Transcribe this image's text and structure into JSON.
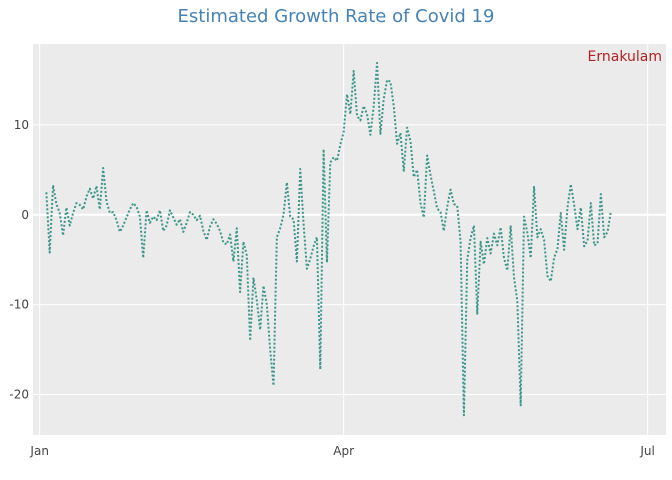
{
  "chart_data": {
    "type": "line",
    "title": "Estimated Growth Rate of Covid 19",
    "annotation": "Ernakulam",
    "annotation_position": "top-right",
    "xlabel": "",
    "ylabel": "",
    "x_domain_days": [
      -2,
      187.5
    ],
    "ylim": [
      -24.5,
      19
    ],
    "grid": true,
    "x_ticks": [
      {
        "label": "Jan",
        "day": 0
      },
      {
        "label": "Apr",
        "day": 91
      },
      {
        "label": "Jul",
        "day": 182
      }
    ],
    "y_ticks": [
      {
        "label": "10",
        "value": 10
      },
      {
        "label": "0",
        "value": 0
      },
      {
        "label": "-10",
        "value": -10
      },
      {
        "label": "-20",
        "value": -20
      }
    ],
    "colors": {
      "line": "#3a9688",
      "plot_bg": "#ebebeb",
      "grid": "#ffffff",
      "title": "#4682b4",
      "annotation": "#b22222"
    },
    "series": [
      {
        "name": "Ernakulam",
        "points": [
          [
            2,
            2.5
          ],
          [
            3,
            -4.2
          ],
          [
            4,
            3.3
          ],
          [
            5,
            1.2
          ],
          [
            6,
            0.2
          ],
          [
            7,
            -2.3
          ],
          [
            8,
            0.8
          ],
          [
            9,
            -1.2
          ],
          [
            10,
            0.2
          ],
          [
            11,
            1.3
          ],
          [
            12,
            1.1
          ],
          [
            13,
            0.6
          ],
          [
            14,
            2.0
          ],
          [
            15,
            2.9
          ],
          [
            16,
            1.8
          ],
          [
            17,
            3.2
          ],
          [
            18,
            0.6
          ],
          [
            19,
            5.2
          ],
          [
            20,
            1.5
          ],
          [
            21,
            0.2
          ],
          [
            22,
            0.3
          ],
          [
            23,
            -0.6
          ],
          [
            24,
            -1.9
          ],
          [
            25,
            -1.2
          ],
          [
            26,
            -0.3
          ],
          [
            27,
            0.6
          ],
          [
            28,
            1.3
          ],
          [
            29,
            0.9
          ],
          [
            30,
            -0.2
          ],
          [
            31,
            -4.8
          ],
          [
            32,
            0.5
          ],
          [
            33,
            -0.9
          ],
          [
            34,
            -0.2
          ],
          [
            35,
            -0.6
          ],
          [
            36,
            0.5
          ],
          [
            37,
            -1.8
          ],
          [
            38,
            -1.2
          ],
          [
            39,
            0.5
          ],
          [
            40,
            -0.3
          ],
          [
            41,
            -1.1
          ],
          [
            42,
            -0.5
          ],
          [
            43,
            -1.9
          ],
          [
            44,
            -0.9
          ],
          [
            45,
            0.3
          ],
          [
            46,
            0.0
          ],
          [
            47,
            -0.6
          ],
          [
            48,
            -0.1
          ],
          [
            49,
            -1.8
          ],
          [
            50,
            -2.8
          ],
          [
            51,
            -1.3
          ],
          [
            52,
            -0.5
          ],
          [
            53,
            -1.0
          ],
          [
            54,
            -1.8
          ],
          [
            55,
            -3.1
          ],
          [
            56,
            -3.3
          ],
          [
            57,
            -2.2
          ],
          [
            58,
            -5.2
          ],
          [
            59,
            -1.5
          ],
          [
            60,
            -8.6
          ],
          [
            61,
            -3.0
          ],
          [
            62,
            -4.5
          ],
          [
            63,
            -14.0
          ],
          [
            64,
            -7.0
          ],
          [
            65,
            -9.5
          ],
          [
            66,
            -12.8
          ],
          [
            67,
            -7.9
          ],
          [
            68,
            -10.0
          ],
          [
            69,
            -15.0
          ],
          [
            70,
            -19.0
          ],
          [
            71,
            -2.5
          ],
          [
            72,
            -1.5
          ],
          [
            73,
            0.0
          ],
          [
            74,
            3.6
          ],
          [
            75,
            -0.2
          ],
          [
            76,
            -0.5
          ],
          [
            77,
            -5.2
          ],
          [
            78,
            5.1
          ],
          [
            79,
            -1.0
          ],
          [
            80,
            -6.0
          ],
          [
            81,
            -4.9
          ],
          [
            82,
            -3.5
          ],
          [
            83,
            -2.5
          ],
          [
            84,
            -17.2
          ],
          [
            85,
            7.3
          ],
          [
            86,
            -5.3
          ],
          [
            87,
            5.8
          ],
          [
            88,
            6.4
          ],
          [
            89,
            6.0
          ],
          [
            90,
            7.8
          ],
          [
            91,
            9.2
          ],
          [
            92,
            13.4
          ],
          [
            93,
            11.2
          ],
          [
            94,
            16.0
          ],
          [
            95,
            11.0
          ],
          [
            96,
            10.5
          ],
          [
            97,
            12.1
          ],
          [
            98,
            11.2
          ],
          [
            99,
            8.9
          ],
          [
            100,
            12.1
          ],
          [
            101,
            16.9
          ],
          [
            102,
            9.0
          ],
          [
            103,
            12.9
          ],
          [
            104,
            15.0
          ],
          [
            105,
            14.8
          ],
          [
            106,
            12.1
          ],
          [
            107,
            7.9
          ],
          [
            108,
            9.1
          ],
          [
            109,
            4.9
          ],
          [
            110,
            9.7
          ],
          [
            111,
            8.2
          ],
          [
            112,
            4.2
          ],
          [
            113,
            5.0
          ],
          [
            114,
            1.3
          ],
          [
            115,
            -0.3
          ],
          [
            116,
            6.6
          ],
          [
            117,
            4.4
          ],
          [
            118,
            2.6
          ],
          [
            119,
            0.7
          ],
          [
            120,
            0.3
          ],
          [
            121,
            -1.8
          ],
          [
            122,
            0.9
          ],
          [
            123,
            2.8
          ],
          [
            124,
            1.2
          ],
          [
            125,
            1.0
          ],
          [
            126,
            -3.0
          ],
          [
            127,
            -22.3
          ],
          [
            128,
            -5.0
          ],
          [
            129,
            -2.6
          ],
          [
            130,
            -1.2
          ],
          [
            131,
            -11.0
          ],
          [
            132,
            -3.0
          ],
          [
            133,
            -5.5
          ],
          [
            134,
            -2.6
          ],
          [
            135,
            -4.3
          ],
          [
            136,
            -2.1
          ],
          [
            137,
            -3.4
          ],
          [
            138,
            -1.4
          ],
          [
            139,
            -4.8
          ],
          [
            140,
            -6.2
          ],
          [
            141,
            -1.2
          ],
          [
            142,
            -7.0
          ],
          [
            143,
            -9.6
          ],
          [
            144,
            -21.2
          ],
          [
            145,
            -0.2
          ],
          [
            146,
            -2.0
          ],
          [
            147,
            -4.8
          ],
          [
            148,
            3.1
          ],
          [
            149,
            -2.5
          ],
          [
            150,
            -1.6
          ],
          [
            151,
            -2.8
          ],
          [
            152,
            -6.8
          ],
          [
            153,
            -7.4
          ],
          [
            154,
            -4.8
          ],
          [
            155,
            -3.8
          ],
          [
            156,
            0.2
          ],
          [
            157,
            -3.9
          ],
          [
            158,
            0.8
          ],
          [
            159,
            3.4
          ],
          [
            160,
            1.1
          ],
          [
            161,
            -1.6
          ],
          [
            162,
            0.8
          ],
          [
            163,
            -3.5
          ],
          [
            164,
            -2.9
          ],
          [
            165,
            1.3
          ],
          [
            166,
            -3.4
          ],
          [
            167,
            -3.2
          ],
          [
            168,
            2.3
          ],
          [
            169,
            -2.5
          ],
          [
            170,
            -1.9
          ],
          [
            171,
            0.4
          ]
        ]
      }
    ]
  }
}
